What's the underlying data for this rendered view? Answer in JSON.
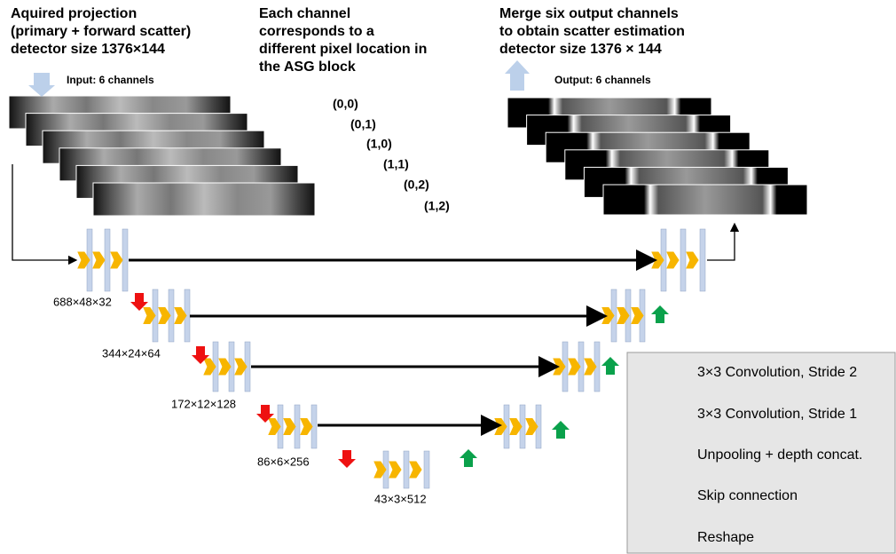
{
  "input_note": [
    "Aquired projection",
    "(primary + forward scatter)",
    "detector size 1376×144"
  ],
  "channel_note": [
    "Each channel",
    "corresponds to a",
    "different pixel location in",
    "the ASG block"
  ],
  "output_note": [
    "Merge six output channels",
    "to obtain scatter estimation",
    "detector size 1376 × 144"
  ],
  "input_channels": "Input: 6 channels",
  "output_channels": "Output: 6 channels",
  "pixel_locations": [
    "(0,0)",
    "(0,1)",
    "(1,0)",
    "(1,1)",
    "(0,2)",
    "(1,2)"
  ],
  "feature_sizes": [
    "688×48×32",
    "344×24×64",
    "172×12×128",
    "86×6×256",
    "43×3×512"
  ],
  "legend": [
    "3×3 Convolution, Stride 2",
    "3×3 Convolution, Stride 1",
    "Unpooling + depth concat.",
    "Skip connection",
    "Reshape"
  ]
}
